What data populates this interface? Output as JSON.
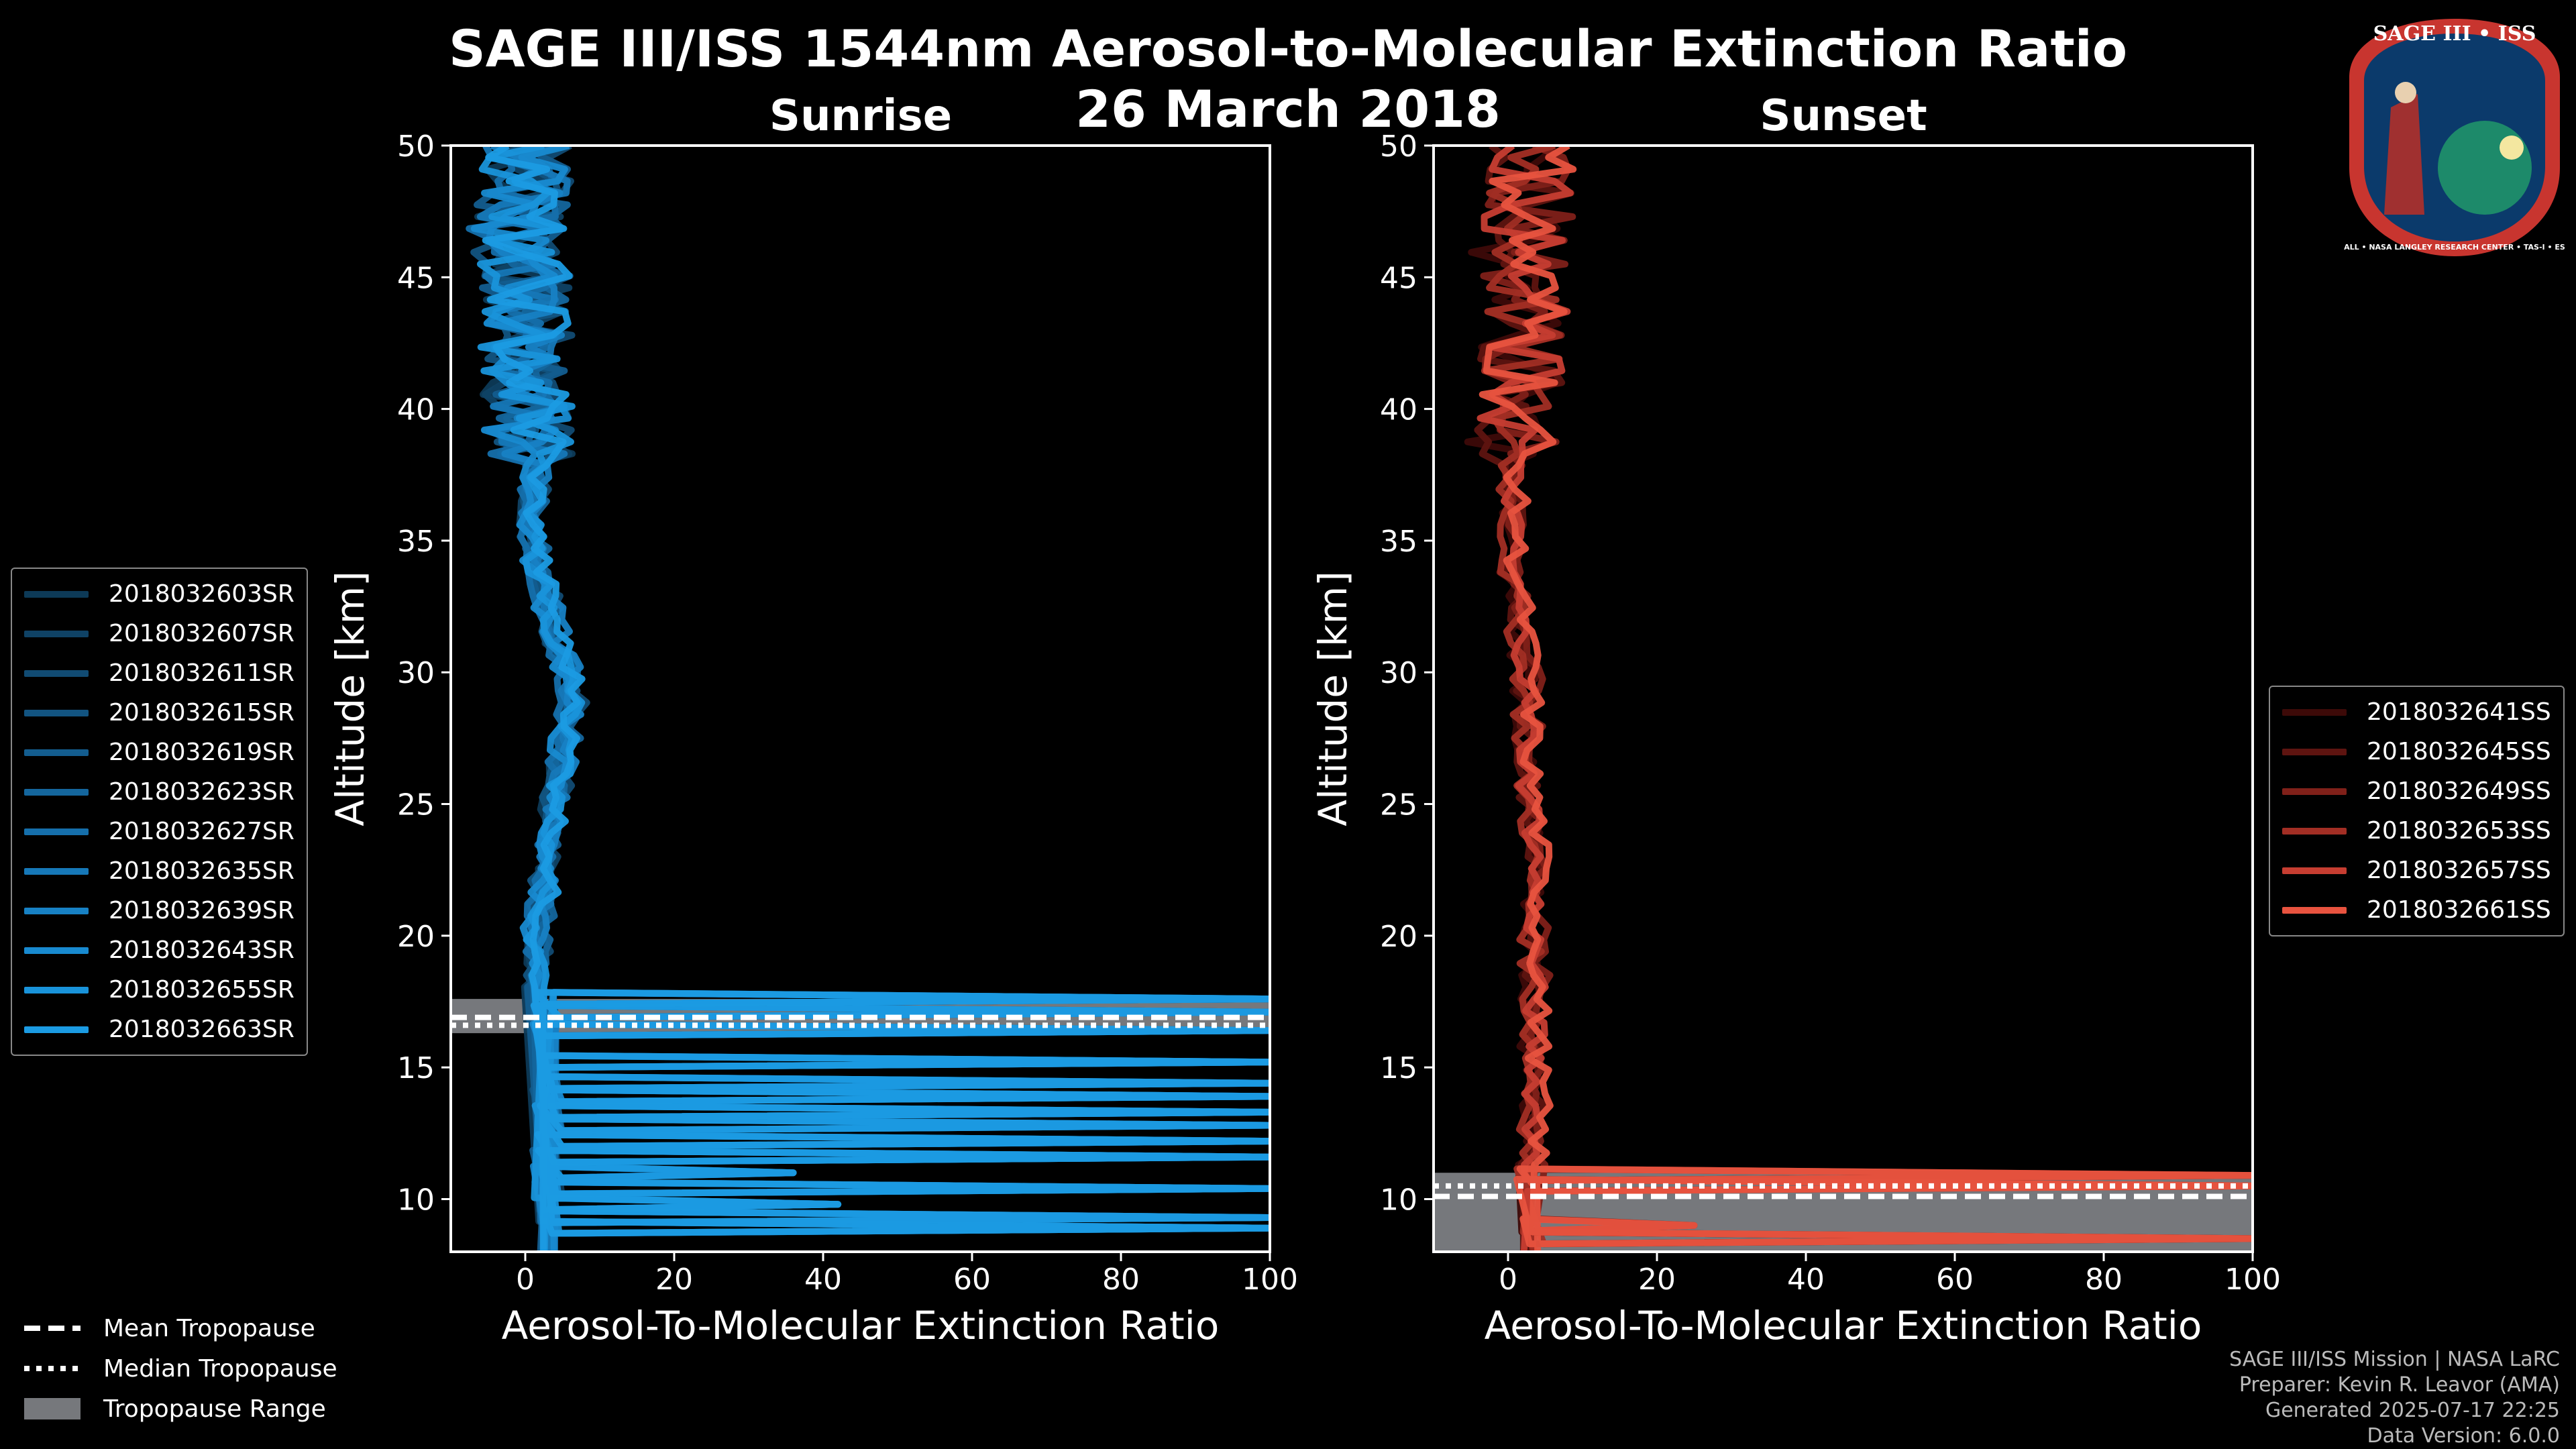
{
  "title": {
    "line1": "SAGE III/ISS 1544nm Aerosol-to-Molecular Extinction Ratio",
    "line2": "26 March 2018"
  },
  "badge": {
    "text": "SAGE III • ISS",
    "ring_text": "BALL • NASA LANGLEY RESEARCH CENTER • TAS-I • ESA",
    "colors": {
      "ring": "#c8352f",
      "inner": "#0b3a6b",
      "text": "#ffffff"
    }
  },
  "bottom_legend": {
    "mean": "Mean Tropopause",
    "median": "Median Tropopause",
    "range": "Tropopause Range"
  },
  "credits": {
    "line1": "SAGE III/ISS Mission | NASA LaRC",
    "line2": "Preparer: Kevin R. Leavor (AMA)",
    "line3": "Generated 2025-07-17 22:25",
    "line4": "Data Version: 6.0.0"
  },
  "chart_data": [
    {
      "type": "line",
      "title": "Sunrise",
      "xlabel": "Aerosol-To-Molecular Extinction Ratio",
      "ylabel": "Altitude [km]",
      "xlim": [
        -10,
        100
      ],
      "ylim": [
        8,
        50
      ],
      "xticks": [
        0,
        20,
        40,
        60,
        80,
        100
      ],
      "yticks": [
        10,
        15,
        20,
        25,
        30,
        35,
        40,
        45,
        50
      ],
      "tropopause": {
        "mean": 16.9,
        "median": 16.6,
        "range": [
          16.3,
          17.6
        ]
      },
      "legend_position": "left",
      "series": [
        {
          "name": "2018032603SR",
          "color": "#0d3a57"
        },
        {
          "name": "2018032607SR",
          "color": "#0f4265"
        },
        {
          "name": "2018032611SR",
          "color": "#114b73"
        },
        {
          "name": "2018032615SR",
          "color": "#125481"
        },
        {
          "name": "2018032619SR",
          "color": "#135d8f"
        },
        {
          "name": "2018032623SR",
          "color": "#14669d"
        },
        {
          "name": "2018032627SR",
          "color": "#156fab"
        },
        {
          "name": "2018032635SR",
          "color": "#1678b8"
        },
        {
          "name": "2018032639SR",
          "color": "#1781c4"
        },
        {
          "name": "2018032643SR",
          "color": "#188ad0"
        },
        {
          "name": "2018032655SR",
          "color": "#1993da"
        },
        {
          "name": "2018032663SR",
          "color": "#1b9be3"
        }
      ],
      "profile": {
        "alt": [
          8,
          9,
          10,
          11,
          12,
          13,
          14,
          15,
          16,
          17,
          17.5,
          18,
          19,
          20,
          22,
          24,
          26,
          28,
          29,
          30,
          32,
          34,
          36,
          38,
          40,
          42,
          44,
          46,
          48,
          50
        ],
        "ratio": [
          2,
          3,
          1,
          2,
          0,
          1,
          2,
          1,
          2,
          3,
          2,
          1,
          1,
          1,
          2,
          3,
          4,
          5,
          6,
          5,
          3,
          1,
          0,
          1,
          0,
          -1,
          0,
          -2,
          -1,
          0
        ]
      },
      "troposphere_spikes": [
        {
          "alt": 8.9,
          "ratio": 100
        },
        {
          "alt": 9.3,
          "ratio": 100
        },
        {
          "alt": 9.8,
          "ratio": 42
        },
        {
          "alt": 10.4,
          "ratio": 100
        },
        {
          "alt": 11.0,
          "ratio": 36
        },
        {
          "alt": 11.6,
          "ratio": 100
        },
        {
          "alt": 12.2,
          "ratio": 100
        },
        {
          "alt": 12.8,
          "ratio": 100
        },
        {
          "alt": 13.3,
          "ratio": 100
        },
        {
          "alt": 13.9,
          "ratio": 100
        },
        {
          "alt": 14.4,
          "ratio": 100
        },
        {
          "alt": 15.2,
          "ratio": 100
        },
        {
          "alt": 16.4,
          "ratio": 100
        },
        {
          "alt": 17.1,
          "ratio": 100
        },
        {
          "alt": 17.6,
          "ratio": 100
        }
      ]
    },
    {
      "type": "line",
      "title": "Sunset",
      "xlabel": "Aerosol-To-Molecular Extinction Ratio",
      "ylabel": "Altitude [km]",
      "xlim": [
        -10,
        100
      ],
      "ylim": [
        8,
        50
      ],
      "xticks": [
        0,
        20,
        40,
        60,
        80,
        100
      ],
      "yticks": [
        10,
        15,
        20,
        25,
        30,
        35,
        40,
        45,
        50
      ],
      "tropopause": {
        "mean": 10.1,
        "median": 10.5,
        "range": [
          8,
          11
        ]
      },
      "legend_position": "right",
      "series": [
        {
          "name": "2018032641SS",
          "color": "#3d0a08"
        },
        {
          "name": "2018032645SS",
          "color": "#5e1410"
        },
        {
          "name": "2018032649SS",
          "color": "#802019"
        },
        {
          "name": "2018032653SS",
          "color": "#a22e24"
        },
        {
          "name": "2018032657SS",
          "color": "#c63d31"
        },
        {
          "name": "2018032661SS",
          "color": "#e8533f"
        }
      ],
      "profile": {
        "alt": [
          8,
          9,
          10,
          11,
          12,
          14,
          16,
          18,
          20,
          22,
          24,
          26,
          28,
          30,
          32,
          34,
          36,
          38,
          40,
          42,
          44,
          46,
          48,
          50
        ],
        "ratio": [
          3,
          4,
          3,
          2,
          3,
          3,
          3,
          3,
          3,
          3,
          3,
          2,
          2,
          2,
          1,
          0,
          0,
          0,
          1,
          1,
          2,
          1,
          2,
          3
        ]
      },
      "troposphere_spikes": [
        {
          "alt": 8.5,
          "ratio": 100
        },
        {
          "alt": 9.0,
          "ratio": 25
        },
        {
          "alt": 10.5,
          "ratio": 100
        },
        {
          "alt": 10.9,
          "ratio": 100
        }
      ]
    }
  ]
}
